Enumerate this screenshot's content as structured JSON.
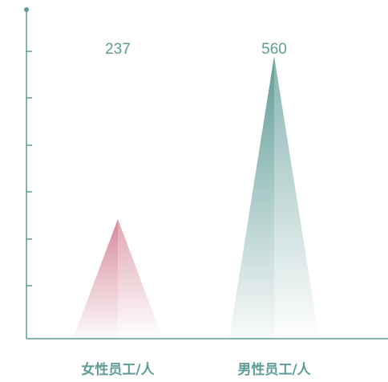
{
  "chart_data": {
    "type": "bar",
    "title": "",
    "xlabel": "",
    "ylabel": "",
    "categories": [
      "女性员工/人",
      "男性员工/人"
    ],
    "values": [
      237,
      560
    ],
    "ylim": [
      0,
      600
    ],
    "y_tick_count": 7,
    "tick_labels_shown": false,
    "grid": false,
    "bar_shape": "triangle",
    "colors": {
      "axis": "#5f9c96",
      "series": [
        "#d6899b",
        "#5f9c96"
      ],
      "value_label": "#5f9c96",
      "category_label": "#5f9c96"
    }
  }
}
